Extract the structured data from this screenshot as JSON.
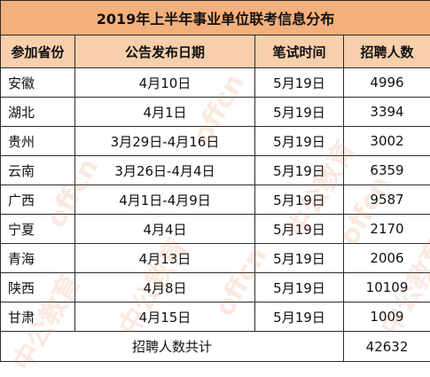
{
  "title": "2019年上半年事业单位联考信息分布",
  "columns": [
    "参加省份",
    "公告发布日期",
    "笔试时间",
    "招聘人数"
  ],
  "rows": [
    {
      "province": "安徽",
      "announce": "4月10日",
      "exam": "5月19日",
      "count": "4996"
    },
    {
      "province": "湖北",
      "announce": "4月1日",
      "exam": "5月19日",
      "count": "3394"
    },
    {
      "province": "贵州",
      "announce": "3月29日-4月16日",
      "exam": "5月19日",
      "count": "3002"
    },
    {
      "province": "云南",
      "announce": "3月26日-4月4日",
      "exam": "5月19日",
      "count": "6359"
    },
    {
      "province": "广西",
      "announce": "4月1日-4月9日",
      "exam": "5月19日",
      "count": "9587"
    },
    {
      "province": "宁夏",
      "announce": "4月4日",
      "exam": "5月19日",
      "count": "2170"
    },
    {
      "province": "青海",
      "announce": "4月13日",
      "exam": "5月19日",
      "count": "2006"
    },
    {
      "province": "陕西",
      "announce": "4月8日",
      "exam": "5月19日",
      "count": "10109"
    },
    {
      "province": "甘肃",
      "announce": "4月15日",
      "exam": "5月19日",
      "count": "1009"
    }
  ],
  "total": {
    "label": "招聘人数共计",
    "count": "42632"
  },
  "watermark": {
    "text_latin": "offcn",
    "text_cn": "中公教育",
    "color": "#e6783c"
  }
}
